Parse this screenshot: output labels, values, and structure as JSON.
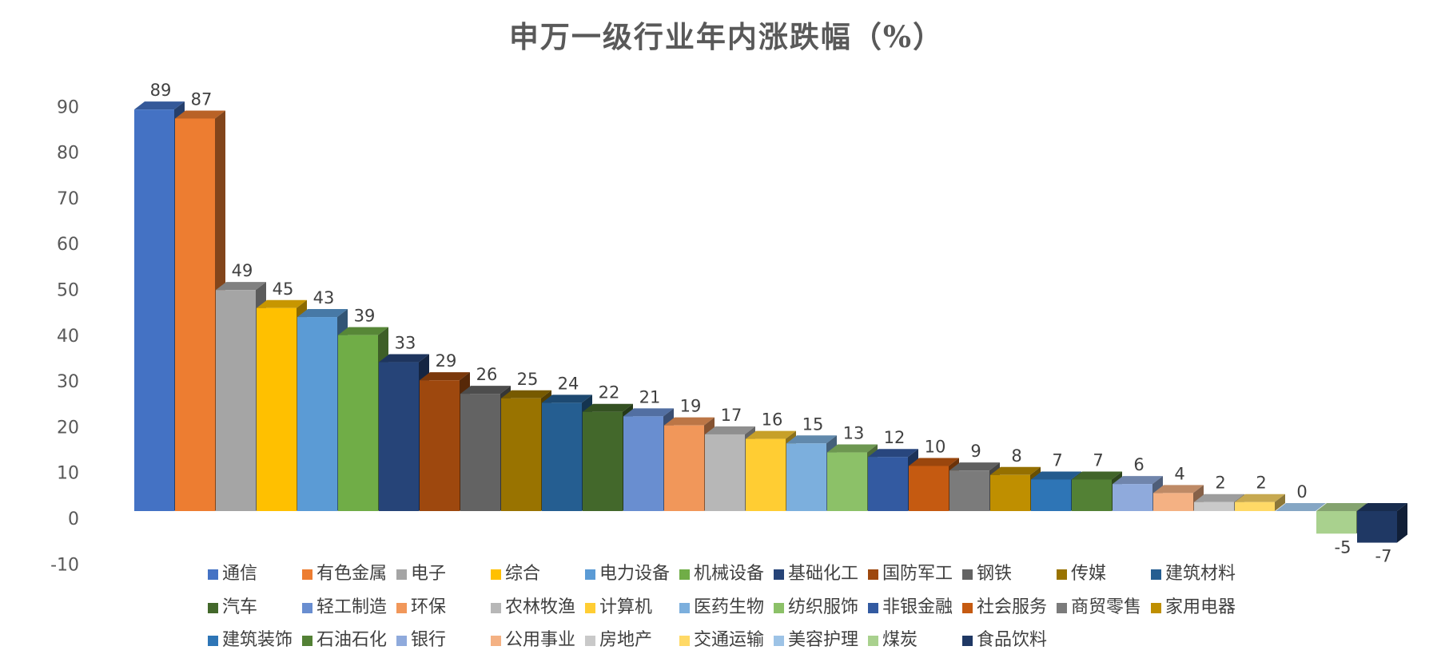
{
  "chart_data": {
    "type": "bar",
    "subtype": "3d-column",
    "title": "申万一级行业年内涨跌幅（%）",
    "categories": [
      "通信",
      "有色金属",
      "电子",
      "综合",
      "电力设备",
      "机械设备",
      "基础化工",
      "国防军工",
      "钢铁",
      "传媒",
      "建筑材料",
      "汽车",
      "轻工制造",
      "环保",
      "农林牧渔",
      "计算机",
      "医药生物",
      "纺织服饰",
      "非银金融",
      "社会服务",
      "商贸零售",
      "家用电器",
      "建筑装饰",
      "石油石化",
      "银行",
      "公用事业",
      "房地产",
      "交通运输",
      "美容护理",
      "煤炭",
      "食品饮料"
    ],
    "values": [
      89,
      87,
      49,
      45,
      43,
      39,
      33,
      29,
      26,
      25,
      24,
      22,
      21,
      19,
      17,
      16,
      15,
      13,
      12,
      10,
      9,
      8,
      7,
      7,
      6,
      4,
      2,
      2,
      0,
      -5,
      -7
    ],
    "colors": [
      "#4472C4",
      "#ED7D31",
      "#A5A5A5",
      "#FFC000",
      "#5B9BD5",
      "#70AD47",
      "#264478",
      "#9E480E",
      "#636363",
      "#997300",
      "#255E91",
      "#43682B",
      "#698ED0",
      "#F1975A",
      "#B7B7B7",
      "#FFCD33",
      "#7CAFDD",
      "#8CC168",
      "#335AA1",
      "#C55A11",
      "#7B7B7B",
      "#BF8F00",
      "#2E75B6",
      "#538135",
      "#8FAADC",
      "#F4B183",
      "#C9C9C9",
      "#FFD966",
      "#9DC3E6",
      "#A9D18E",
      "#1F3864"
    ],
    "xlabel": "",
    "ylabel": "",
    "ylim": [
      -10,
      90
    ],
    "yticks": [
      90,
      80,
      70,
      60,
      50,
      40,
      30,
      20,
      10,
      0,
      -10
    ],
    "grid": false,
    "value_labels_shown": true,
    "legend_position": "bottom",
    "legend_rows": 3,
    "title_color": "#595959",
    "axis_label_color": "#595959",
    "value_label_color": "#404040",
    "legend_text_color": "#404040",
    "background_color": "#FFFFFF"
  }
}
